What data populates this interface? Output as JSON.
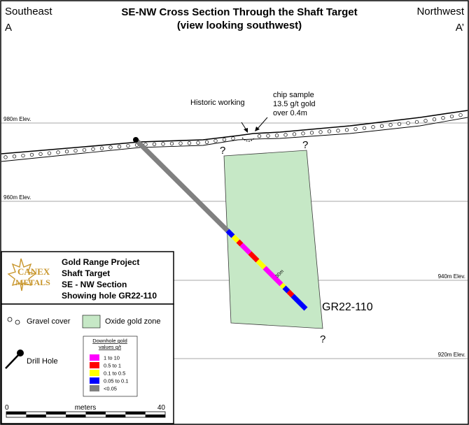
{
  "title": {
    "line1": "SE-NW Cross Section Through the Shaft Target",
    "line2": "(view looking southwest)"
  },
  "ends": {
    "left_direction": "Southeast",
    "left_letter": "A",
    "right_direction": "Northwest",
    "right_letter": "A’"
  },
  "elevations": [
    {
      "label": "980m Elev."
    },
    {
      "label": "960m Elev."
    },
    {
      "label": "940m Elev."
    },
    {
      "label": "920m Elev."
    }
  ],
  "annotations": {
    "historic_working": "Historic working",
    "chip_line1": "chip sample",
    "chip_line2": "13.5 g/t gold",
    "chip_line3": "over 0.4m",
    "unknown_mark": "?",
    "hole_id": "GR22-110",
    "depth_mark": "30m"
  },
  "title_block": {
    "logo_line1": "CANEX",
    "logo_line2": "METALS",
    "line1": "Gold Range Project",
    "line2": "Shaft Target",
    "line3": "SE - NW Section",
    "line4": "Showing hole GR22-110"
  },
  "legend": {
    "gravel": "Gravel cover",
    "oxide": "Oxide gold zone",
    "drill": "Drill Hole",
    "gold_title1": "Downhole gold",
    "gold_title2": "values g/t",
    "gold_classes": [
      {
        "label": "1 to 10",
        "color": "#ff00ff"
      },
      {
        "label": "0.5 to 1",
        "color": "#ff0000"
      },
      {
        "label": "0.1 to 0.5",
        "color": "#ffff00"
      },
      {
        "label": "0.05 to 0.1",
        "color": "#0000ff"
      },
      {
        "label": "<0.05",
        "color": "#808080"
      }
    ]
  },
  "scale_bar": {
    "start": "0",
    "unit": "meters",
    "end": "40"
  },
  "colors": {
    "oxide_fill": "#c6e8c6",
    "oxide_stroke": "#3a3a3a",
    "logo": "#c8962c"
  }
}
